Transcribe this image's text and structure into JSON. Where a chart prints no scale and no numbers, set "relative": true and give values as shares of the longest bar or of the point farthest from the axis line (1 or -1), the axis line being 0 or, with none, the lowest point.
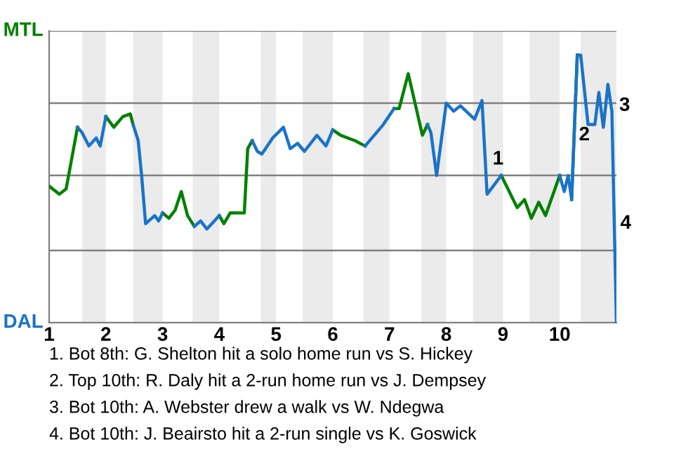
{
  "chart_data": {
    "type": "line",
    "relative": true,
    "xlabel": null,
    "x": [
      1,
      1.18,
      1.3,
      1.5,
      1.58,
      1.7,
      1.83,
      1.9,
      2,
      2.14,
      2.3,
      2.43,
      2.48,
      2.57,
      2.63,
      2.7,
      2.86,
      2.93,
      3,
      3.11,
      3.22,
      3.33,
      3.44,
      3.56,
      3.67,
      3.78,
      4,
      4.08,
      4.19,
      4.44,
      4.5,
      4.58,
      4.67,
      4.75,
      4.94,
      5.13,
      5.25,
      5.38,
      5.5,
      5.72,
      5.88,
      6,
      6.14,
      6.39,
      6.57,
      6.89,
      7.08,
      7.17,
      7.33,
      7.58,
      7.67,
      7.73,
      7.83,
      8,
      8.13,
      8.25,
      8.5,
      8.63,
      8.72,
      8.97,
      9.25,
      9.38,
      9.5,
      9.63,
      9.75,
      10,
      10.08,
      10.15,
      10.21,
      10.31,
      10.37,
      10.5,
      10.62,
      10.69,
      10.77,
      10.85,
      10.92,
      10.96,
      11
    ],
    "series": [
      {
        "color": "#008000",
        "values": [
          0.51,
          0.48,
          0.5,
          0.73,
          null,
          null,
          null,
          null,
          0.77,
          0.73,
          0.77,
          0.78,
          0.74,
          null,
          null,
          null,
          null,
          null,
          0.41,
          0.39,
          0.42,
          0.49,
          0.4,
          0.36,
          null,
          null,
          0.4,
          0.37,
          0.41,
          0.41,
          0.65,
          0.68,
          null,
          null,
          null,
          null,
          null,
          null,
          null,
          null,
          null,
          0.72,
          0.7,
          0.68,
          0.66,
          null,
          0.8,
          0.8,
          0.93,
          0.7,
          0.74,
          null,
          null,
          null,
          null,
          null,
          null,
          null,
          null,
          0.55,
          0.43,
          0.46,
          0.39,
          0.45,
          0.4,
          0.55,
          null,
          null,
          0.46,
          1,
          null,
          null,
          null,
          null,
          null,
          null,
          null,
          null,
          null
        ]
      },
      {
        "color": "#1a73c8",
        "values": [
          null,
          null,
          null,
          0.73,
          0.71,
          0.66,
          0.69,
          0.66,
          0.77,
          null,
          null,
          null,
          0.74,
          0.68,
          0.55,
          0.37,
          0.4,
          0.38,
          0.41,
          null,
          null,
          null,
          null,
          0.36,
          0.38,
          0.35,
          0.4,
          null,
          null,
          null,
          null,
          0.68,
          0.64,
          0.63,
          0.69,
          0.73,
          0.65,
          0.67,
          0.64,
          0.7,
          0.66,
          0.72,
          null,
          null,
          0.66,
          0.74,
          0.8,
          null,
          null,
          null,
          0.74,
          0.71,
          0.55,
          0.82,
          0.79,
          0.81,
          0.76,
          0.83,
          0.48,
          0.55,
          null,
          null,
          null,
          null,
          null,
          0.55,
          0.49,
          0.55,
          0.46,
          1,
          1,
          0.74,
          0.74,
          0.86,
          0.73,
          0.89,
          0.79,
          0.39,
          0
        ]
      }
    ],
    "xlim": [
      1,
      11
    ],
    "xticks": [
      1,
      2,
      3,
      4,
      5,
      6,
      7,
      8,
      9,
      10
    ],
    "ref_lines": [
      {
        "axis": "y",
        "value": 0,
        "label": "DAL",
        "color": "#808080"
      },
      {
        "axis": "y",
        "value": 0.27,
        "color": "#808080"
      },
      {
        "axis": "y",
        "value": 0.55,
        "color": "#808080"
      },
      {
        "axis": "y",
        "value": 0.82,
        "color": "#808080"
      },
      {
        "axis": "y",
        "value": 1.09,
        "label": "MTL",
        "color": "#808080"
      }
    ],
    "bands": [
      {
        "axis": "x",
        "from": 1.58,
        "to": 2,
        "color": "#ebebeb"
      },
      {
        "axis": "x",
        "from": 2.48,
        "to": 3,
        "color": "#ebebeb"
      },
      {
        "axis": "x",
        "from": 3.53,
        "to": 4,
        "color": "#ebebeb"
      },
      {
        "axis": "x",
        "from": 4.73,
        "to": 5,
        "color": "#ebebeb"
      },
      {
        "axis": "x",
        "from": 5.47,
        "to": 6,
        "color": "#ebebeb"
      },
      {
        "axis": "x",
        "from": 6.54,
        "to": 7,
        "color": "#ebebeb"
      },
      {
        "axis": "x",
        "from": 7.56,
        "to": 8,
        "color": "#ebebeb"
      },
      {
        "axis": "x",
        "from": 8.47,
        "to": 9,
        "color": "#ebebeb"
      },
      {
        "axis": "x",
        "from": 9.47,
        "to": 10,
        "color": "#ebebeb"
      },
      {
        "axis": "x",
        "from": 10.37,
        "to": 11,
        "color": "#ebebeb"
      }
    ],
    "annotations": [
      {
        "text": "1",
        "x": 8.75,
        "y": 0.61
      },
      {
        "text": "2",
        "x": 10.27,
        "y": 0.7
      },
      {
        "text": "3",
        "x": 10.98,
        "y": 0.81
      },
      {
        "text": "4",
        "x": 11,
        "y": 0.37
      },
      "1. Bot 8th: G. Shelton hit a solo home run vs S. Hickey",
      "2. Top 10th: R. Daly hit a 2-run home run vs J. Dempsey",
      "3. Bot 10th: A. Webster drew a walk vs W. Ndegwa",
      "4. Bot 10th: J. Beairsto hit a 2-run single vs K. Goswick"
    ],
    "marker": "none",
    "line_style": "solid"
  }
}
